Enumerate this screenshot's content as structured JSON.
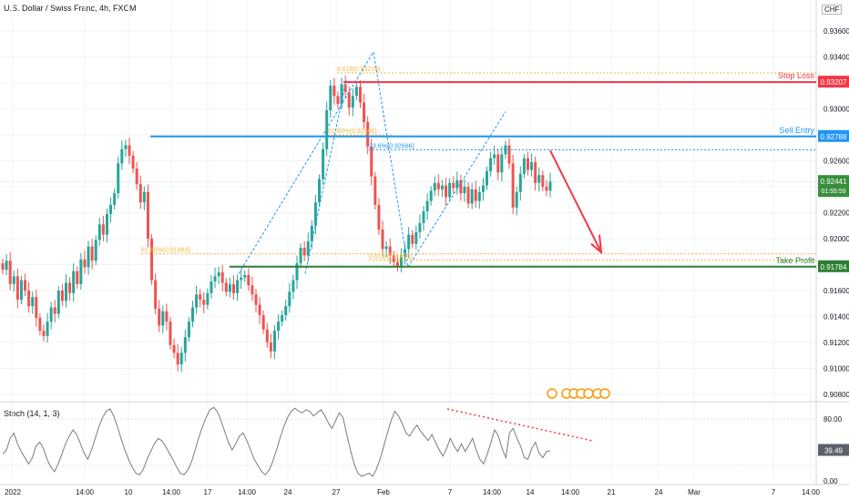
{
  "header": {
    "symbol_title": "U.S. Dollar / Swiss Franc, 4h, FXCM",
    "currency": "CHF"
  },
  "colors": {
    "up": "#26a69a",
    "down": "#ef5350",
    "sell": "#2196f3",
    "stop": "#f23645",
    "take": "#2e7d32",
    "fib": "#f6b63d",
    "stoch_line": "#787b86",
    "stoch_trend": "#f23645",
    "grid": "#f0f3fa"
  },
  "chart_data": [
    {
      "type": "candlestick",
      "title": "U.S. Dollar / Swiss Franc, 4h, FXCM",
      "ylim": [
        0.9075,
        0.9384
      ],
      "y_ticks": [
        "0.93600",
        "0.93400",
        "0.93200",
        "0.93000",
        "0.92800",
        "0.92600",
        "0.92400",
        "0.92200",
        "0.92000",
        "0.91800",
        "0.91600",
        "0.91400",
        "0.91200",
        "0.91000",
        "0.90800"
      ],
      "x_ticks": [
        "2022",
        "14:00",
        "10",
        "14:00",
        "17",
        "14:00",
        "24",
        "27",
        "Feb",
        "7",
        "14:00",
        "14",
        "14:00",
        "21",
        "24",
        "Mar",
        "7",
        "14:00"
      ],
      "levels": [
        {
          "name": "Stop Loss",
          "value": 0.93207,
          "label": "0.93207"
        },
        {
          "name": "Sell Entry",
          "value": 0.92788,
          "label": "0.92788"
        },
        {
          "name": "Take Profit",
          "value": 0.91784,
          "label": "0.91784"
        }
      ],
      "fib_labels": [
        {
          "text": "0.618(0.93278)",
          "value": 0.93278
        },
        {
          "text": "61.80%(0.92800)",
          "value": 0.928
        },
        {
          "text": "23.6%(0.92686)",
          "value": 0.92686
        },
        {
          "text": "61.80%(0.91883)",
          "value": 0.91883
        },
        {
          "text": "0.618(0.91833)",
          "value": 0.91833
        }
      ],
      "last_price": {
        "value": 0.92441,
        "label": "0.92441",
        "countdown": "01:55:59"
      },
      "closes": [
        0.9176,
        0.9183,
        0.9165,
        0.9171,
        0.9153,
        0.9168,
        0.916,
        0.9148,
        0.9155,
        0.9139,
        0.9129,
        0.9125,
        0.9136,
        0.9147,
        0.9142,
        0.916,
        0.9152,
        0.9166,
        0.9158,
        0.9175,
        0.9165,
        0.9184,
        0.9178,
        0.9194,
        0.9183,
        0.9199,
        0.9211,
        0.9203,
        0.9219,
        0.9226,
        0.9235,
        0.9258,
        0.9269,
        0.9272,
        0.9264,
        0.9254,
        0.9242,
        0.9228,
        0.9236,
        0.92,
        0.9168,
        0.9146,
        0.9133,
        0.9144,
        0.9136,
        0.9118,
        0.9112,
        0.9103,
        0.9112,
        0.9124,
        0.9136,
        0.9147,
        0.9157,
        0.9153,
        0.9149,
        0.9158,
        0.9167,
        0.9171,
        0.9174,
        0.9166,
        0.9159,
        0.9165,
        0.9158,
        0.9168,
        0.917,
        0.9172,
        0.9164,
        0.9157,
        0.9149,
        0.9141,
        0.913,
        0.912,
        0.9113,
        0.9129,
        0.9136,
        0.9141,
        0.9148,
        0.9159,
        0.9168,
        0.9181,
        0.9193,
        0.9187,
        0.9198,
        0.921,
        0.9228,
        0.9246,
        0.9269,
        0.9299,
        0.9318,
        0.931,
        0.9304,
        0.9319,
        0.9313,
        0.9301,
        0.931,
        0.9317,
        0.9305,
        0.929,
        0.9271,
        0.9248,
        0.9226,
        0.9207,
        0.9192,
        0.9194,
        0.9187,
        0.9182,
        0.9179,
        0.9186,
        0.9192,
        0.9203,
        0.9196,
        0.9205,
        0.9212,
        0.9221,
        0.9229,
        0.9237,
        0.9243,
        0.9238,
        0.9241,
        0.9232,
        0.9243,
        0.9239,
        0.9245,
        0.9235,
        0.924,
        0.9227,
        0.9238,
        0.9229,
        0.9236,
        0.9241,
        0.9252,
        0.9262,
        0.9265,
        0.9251,
        0.9265,
        0.9272,
        0.9258,
        0.9224,
        0.9236,
        0.925,
        0.9262,
        0.9253,
        0.9259,
        0.9243,
        0.9249,
        0.924,
        0.9237,
        0.9244
      ]
    },
    {
      "type": "line",
      "title": "Stoch (14, 1, 3)",
      "ylim": [
        0,
        100
      ],
      "y_ticks": [
        "80.00",
        "0.00"
      ],
      "last_value": 39.49,
      "last_label": "39.49",
      "values": [
        35,
        40,
        55,
        62,
        48,
        38,
        30,
        22,
        30,
        45,
        50,
        42,
        28,
        18,
        12,
        22,
        35,
        48,
        58,
        66,
        60,
        48,
        36,
        28,
        40,
        55,
        70,
        82,
        90,
        93,
        84,
        70,
        55,
        40,
        28,
        18,
        10,
        8,
        15,
        28,
        38,
        48,
        55,
        52,
        45,
        36,
        28,
        18,
        10,
        8,
        14,
        24,
        40,
        56,
        70,
        82,
        92,
        95,
        90,
        78,
        64,
        50,
        40,
        48,
        58,
        62,
        52,
        40,
        28,
        20,
        12,
        8,
        14,
        25,
        40,
        56,
        70,
        82,
        90,
        94,
        90,
        88,
        92,
        90,
        84,
        88,
        92,
        85,
        75,
        68,
        78,
        88,
        82,
        60,
        40,
        22,
        10,
        6,
        8,
        10,
        6,
        15,
        28,
        45,
        62,
        78,
        90,
        84,
        74,
        62,
        58,
        66,
        72,
        64,
        58,
        52,
        60,
        50,
        40,
        32,
        42,
        55,
        45,
        38,
        48,
        38,
        46,
        55,
        40,
        28,
        22,
        35,
        50,
        66,
        58,
        42,
        30,
        62,
        68,
        55,
        45,
        30,
        28,
        42,
        50,
        36,
        30,
        38,
        39
      ]
    }
  ]
}
